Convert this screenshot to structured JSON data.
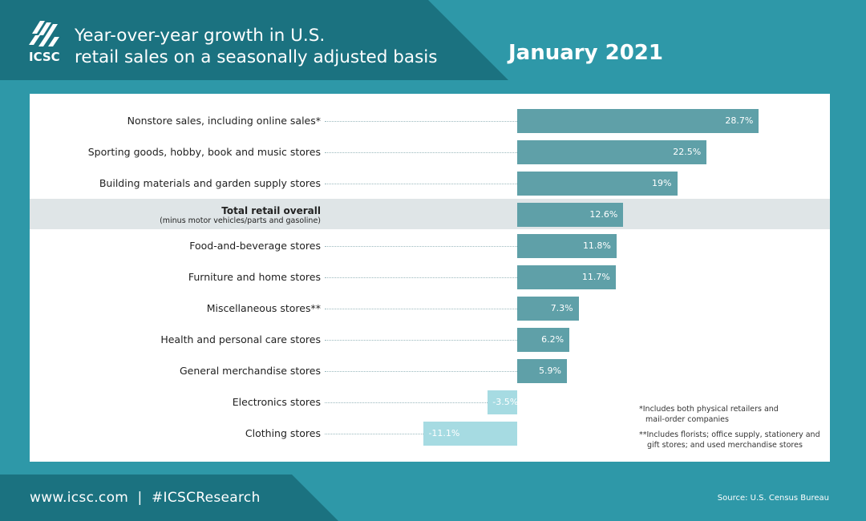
{
  "header": {
    "logo_text": "ICSC",
    "title_line1": "Year-over-year growth in U.S.",
    "title_line2": "retail sales on a seasonally adjusted basis",
    "month": "January 2021"
  },
  "chart_data": {
    "type": "bar",
    "orientation": "horizontal",
    "title": "Year-over-year growth in U.S. retail sales on a seasonally adjusted basis",
    "subtitle": "January 2021",
    "categories": [
      "Nonstore sales, including online sales*",
      "Sporting goods, hobby, book and music stores",
      "Building materials and garden supply stores",
      "Total retail overall",
      "Food-and-beverage stores",
      "Furniture and home stores",
      "Miscellaneous stores**",
      "Health and personal care stores",
      "General merchandise stores",
      "Electronics stores",
      "Clothing stores"
    ],
    "sublabels": {
      "3": "(minus motor vehicles/parts and gasoline)"
    },
    "values": [
      28.7,
      22.5,
      19,
      12.6,
      11.8,
      11.7,
      7.3,
      6.2,
      5.9,
      -3.5,
      -11.1
    ],
    "value_labels": [
      "28.7%",
      "22.5%",
      "19%",
      "12.6%",
      "11.8%",
      "11.7%",
      "7.3%",
      "6.2%",
      "5.9%",
      "-3.5%",
      "-11.1%"
    ],
    "highlight_index": 3,
    "colors": {
      "positive": "#5fa0a8",
      "negative": "#a6dbe2",
      "highlight_band": "#dfe5e7"
    }
  },
  "notes": {
    "note1_line1": "*Includes both physical retailers and",
    "note1_line2": "mail-order companies",
    "note2_line1": "**Includes florists; office supply, stationery and",
    "note2_line2": "gift stores; and used merchandise stores"
  },
  "footer": {
    "links": "www.icsc.com  |  #ICSCResearch",
    "source": "Source: U.S. Census Bureau"
  },
  "colors": {
    "background": "#2e98a8",
    "header_dark": "#1b7280",
    "white": "#ffffff"
  }
}
